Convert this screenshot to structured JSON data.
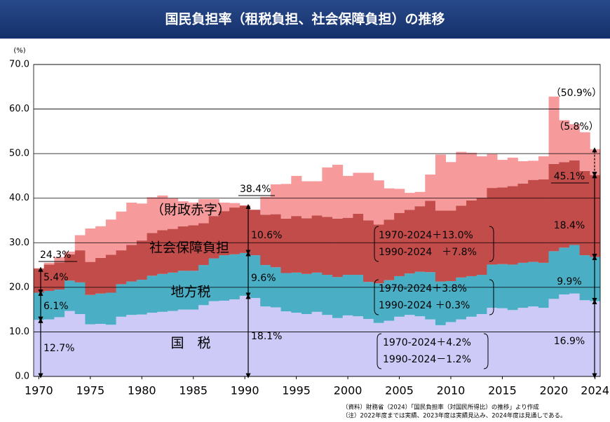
{
  "chart_data": {
    "type": "bar",
    "stacked": true,
    "title": "国民負担率（租税負担、社会保障負担）の推移",
    "y_unit": "(%)",
    "x": [
      1970,
      1971,
      1972,
      1973,
      1974,
      1975,
      1976,
      1977,
      1978,
      1979,
      1980,
      1981,
      1982,
      1983,
      1984,
      1985,
      1986,
      1987,
      1988,
      1989,
      1990,
      1991,
      1992,
      1993,
      1994,
      1995,
      1996,
      1997,
      1998,
      1999,
      2000,
      2001,
      2002,
      2003,
      2004,
      2005,
      2006,
      2007,
      2008,
      2009,
      2010,
      2011,
      2012,
      2013,
      2014,
      2015,
      2016,
      2017,
      2018,
      2019,
      2020,
      2021,
      2022,
      2023,
      2024
    ],
    "xlim": [
      1969.5,
      2024.5
    ],
    "xticks": [
      1970,
      1975,
      1980,
      1985,
      1990,
      1995,
      2000,
      2005,
      2010,
      2015,
      2020,
      2024
    ],
    "ylim": [
      0,
      70
    ],
    "yticks": [
      {
        "value": 0,
        "label": "0.0"
      },
      {
        "value": 10,
        "label": "10.0"
      },
      {
        "value": 20,
        "label": "20.0"
      },
      {
        "value": 30,
        "label": "30.0"
      },
      {
        "value": 40,
        "label": "40.0"
      },
      {
        "value": 50,
        "label": "50.0"
      },
      {
        "value": 60,
        "label": "60.0"
      },
      {
        "value": 70,
        "label": "70.0"
      }
    ],
    "grid": true,
    "series": [
      {
        "name": "国　税",
        "color": "#cdcaf7",
        "values": [
          12.7,
          12.8,
          13.3,
          14.7,
          14.0,
          11.7,
          11.8,
          11.6,
          13.4,
          13.8,
          13.9,
          14.3,
          14.5,
          14.7,
          15.0,
          15.0,
          16.0,
          16.9,
          17.0,
          17.3,
          18.1,
          17.6,
          15.7,
          15.5,
          14.6,
          14.3,
          14.0,
          14.5,
          13.8,
          13.1,
          13.7,
          13.5,
          12.9,
          12.0,
          12.5,
          13.4,
          13.8,
          13.5,
          12.8,
          11.5,
          12.2,
          12.8,
          13.4,
          14.0,
          15.4,
          15.3,
          14.9,
          15.4,
          15.7,
          15.4,
          17.4,
          18.4,
          18.6,
          17.1,
          16.9
        ]
      },
      {
        "name": "地方税",
        "color": "#4aaec5",
        "values": [
          6.1,
          6.4,
          6.2,
          6.8,
          7.1,
          6.6,
          6.8,
          7.2,
          7.3,
          7.5,
          7.8,
          8.3,
          8.5,
          8.6,
          8.7,
          8.7,
          9.0,
          9.6,
          10.2,
          10.1,
          9.6,
          9.6,
          9.3,
          9.0,
          8.6,
          9.0,
          9.0,
          8.8,
          9.0,
          9.2,
          9.1,
          9.3,
          8.3,
          8.9,
          9.1,
          9.1,
          9.3,
          10.0,
          10.6,
          9.8,
          9.2,
          9.4,
          9.1,
          8.8,
          9.7,
          9.9,
          10.2,
          10.1,
          10.0,
          10.1,
          10.7,
          10.5,
          10.9,
          10.1,
          9.9
        ]
      },
      {
        "name": "社会保障負担",
        "color": "#c24c4a",
        "values": [
          5.4,
          5.9,
          6.1,
          5.9,
          7.2,
          7.4,
          8.0,
          8.5,
          7.6,
          8.2,
          8.8,
          9.6,
          9.8,
          9.8,
          10.0,
          10.2,
          9.4,
          9.5,
          9.9,
          10.5,
          10.6,
          10.2,
          11.3,
          11.9,
          12.2,
          12.7,
          12.5,
          12.8,
          13.0,
          13.1,
          12.8,
          13.7,
          13.8,
          13.2,
          13.6,
          14.2,
          14.3,
          14.7,
          16.0,
          15.9,
          15.8,
          16.1,
          17.0,
          17.3,
          17.2,
          17.2,
          17.6,
          17.8,
          18.4,
          18.7,
          19.6,
          19.2,
          19.0,
          18.9,
          18.4
        ]
      },
      {
        "name": "（財政赤字）",
        "color": "#f79a9c",
        "values": [
          0.1,
          0.4,
          1.2,
          0.6,
          3.4,
          7.5,
          7.1,
          7.9,
          8.7,
          9.5,
          8.3,
          8.0,
          7.8,
          6.9,
          5.6,
          5.1,
          5.4,
          3.8,
          1.9,
          1.0,
          0.1,
          0,
          4.0,
          6.7,
          7.8,
          9.0,
          8.3,
          7.7,
          11.1,
          12.1,
          9.4,
          9.2,
          10.7,
          9.9,
          7.0,
          5.4,
          3.8,
          3.2,
          5.9,
          12.6,
          10.9,
          12.1,
          10.7,
          9.3,
          7.6,
          6.2,
          6.4,
          5.0,
          4.3,
          5.2,
          15.1,
          9.4,
          8.1,
          8.7,
          5.8
        ]
      }
    ],
    "annotations": [
      "24.3%",
      "5.4%",
      "6.1%",
      "12.7%",
      "38.4%",
      "10.6%",
      "9.6%",
      "18.1%",
      "（50.9%）",
      "（5.8%）",
      "45.1%",
      "18.4%",
      "9.9%",
      "16.9%",
      "1970-2024＋13.0%",
      "1990-2024　＋7.8%",
      "1970-2024＋3.8%",
      "1990-2024 ＋0.3%",
      "1970-2024＋4.2%",
      "1990-2024－1.2%"
    ],
    "notes": [
      "（資料）財務省（2024）「国民負担率（対国民所得比）の推移」より作成",
      "（注）2022年度までは実績、2023年度は実績見込み、2024年度は見通しである。"
    ]
  }
}
